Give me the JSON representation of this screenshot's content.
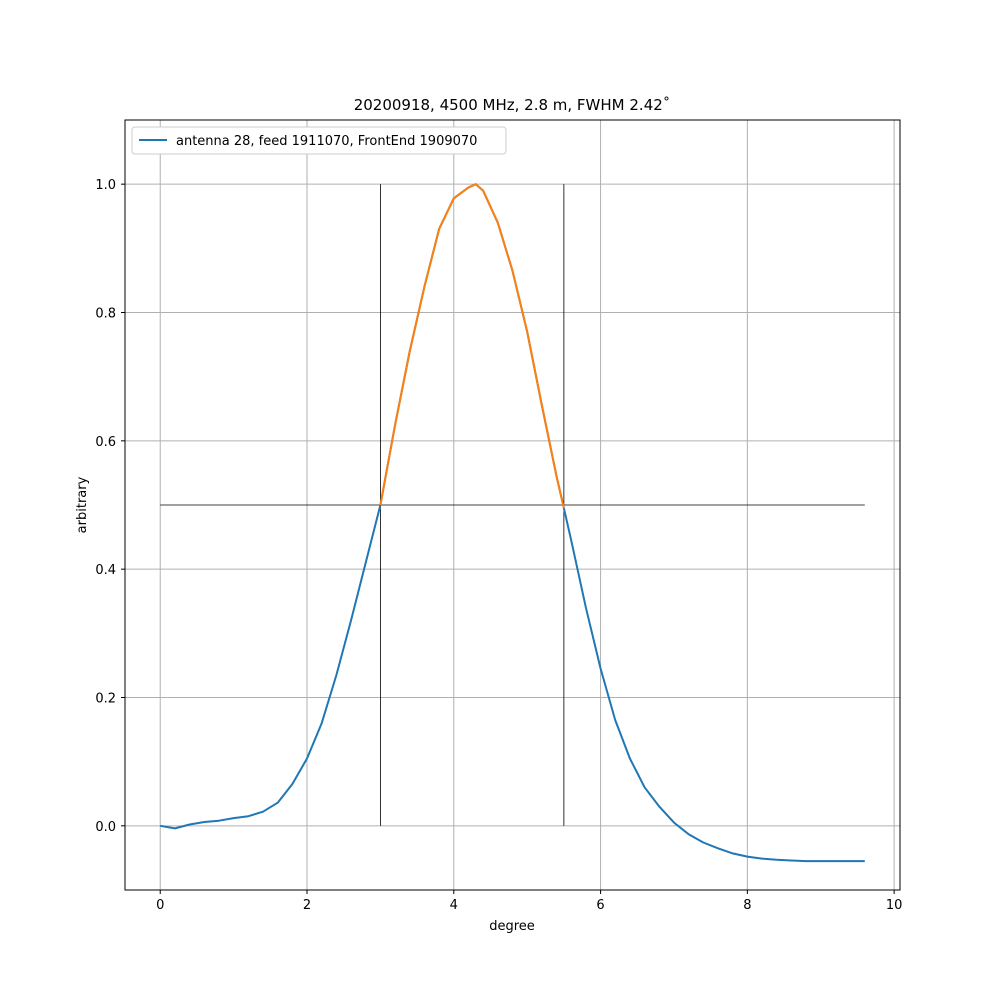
{
  "chart_data": {
    "type": "line",
    "title": "20200918, 4500 MHz, 2.8 m, FWHM 2.42˚",
    "xlabel": "degree",
    "ylabel": "arbitrary",
    "xlim": [
      -0.48,
      10.08
    ],
    "ylim": [
      -0.1,
      1.1
    ],
    "xticks": [
      0,
      2,
      4,
      6,
      8,
      10
    ],
    "xtick_labels": [
      "0",
      "2",
      "4",
      "6",
      "8",
      "10"
    ],
    "yticks": [
      0.0,
      0.2,
      0.4,
      0.6,
      0.8,
      1.0
    ],
    "ytick_labels": [
      "0.0",
      "0.2",
      "0.4",
      "0.6",
      "0.8",
      "1.0"
    ],
    "grid": true,
    "legend": {
      "placement": "upper-left",
      "entries": [
        "antenna 28, feed 1911070, FrontEnd 1909070"
      ]
    },
    "colors": {
      "main": "#1f77b4",
      "highlight": "#ff7f0e",
      "ref": "#000000",
      "grid": "#b0b0b0"
    },
    "series": [
      {
        "name": "antenna 28, feed 1911070, FrontEnd 1909070",
        "color": "#1f77b4",
        "x": [
          0.0,
          0.2,
          0.4,
          0.6,
          0.8,
          1.0,
          1.2,
          1.4,
          1.6,
          1.8,
          2.0,
          2.2,
          2.4,
          2.6,
          2.8,
          3.0,
          3.2,
          3.4,
          3.6,
          3.8,
          4.0,
          4.2,
          4.3,
          4.4,
          4.6,
          4.8,
          5.0,
          5.2,
          5.4,
          5.5,
          5.6,
          5.8,
          6.0,
          6.2,
          6.4,
          6.6,
          6.8,
          7.0,
          7.2,
          7.4,
          7.6,
          7.8,
          8.0,
          8.2,
          8.4,
          8.6,
          8.8,
          9.0,
          9.2,
          9.4,
          9.6
        ],
        "y": [
          0.0,
          -0.004,
          0.002,
          0.006,
          0.008,
          0.012,
          0.015,
          0.022,
          0.036,
          0.065,
          0.105,
          0.16,
          0.235,
          0.32,
          0.41,
          0.5,
          0.625,
          0.74,
          0.84,
          0.93,
          0.978,
          0.995,
          1.0,
          0.99,
          0.94,
          0.865,
          0.77,
          0.655,
          0.545,
          0.495,
          0.445,
          0.34,
          0.245,
          0.165,
          0.105,
          0.06,
          0.03,
          0.005,
          -0.013,
          -0.026,
          -0.035,
          -0.043,
          -0.048,
          -0.051,
          -0.053,
          -0.054,
          -0.055,
          -0.055,
          -0.055,
          -0.055,
          -0.055
        ]
      },
      {
        "color": "#ff7f0e",
        "x": [
          3.0,
          3.2,
          3.4,
          3.6,
          3.8,
          4.0,
          4.2,
          4.3,
          4.4,
          4.6,
          4.8,
          5.0,
          5.2,
          5.4,
          5.5
        ],
        "y": [
          0.5,
          0.625,
          0.74,
          0.84,
          0.93,
          0.978,
          0.995,
          1.0,
          0.99,
          0.94,
          0.865,
          0.77,
          0.655,
          0.545,
          0.495
        ]
      }
    ],
    "reference_lines": [
      {
        "orientation": "horizontal",
        "y": 0.5,
        "x_from": 0.0,
        "x_to": 9.6
      },
      {
        "orientation": "vertical",
        "x": 3.0,
        "y_from": 0.0,
        "y_to": 1.0
      },
      {
        "orientation": "vertical",
        "x": 5.5,
        "y_from": 0.0,
        "y_to": 1.0
      }
    ]
  }
}
